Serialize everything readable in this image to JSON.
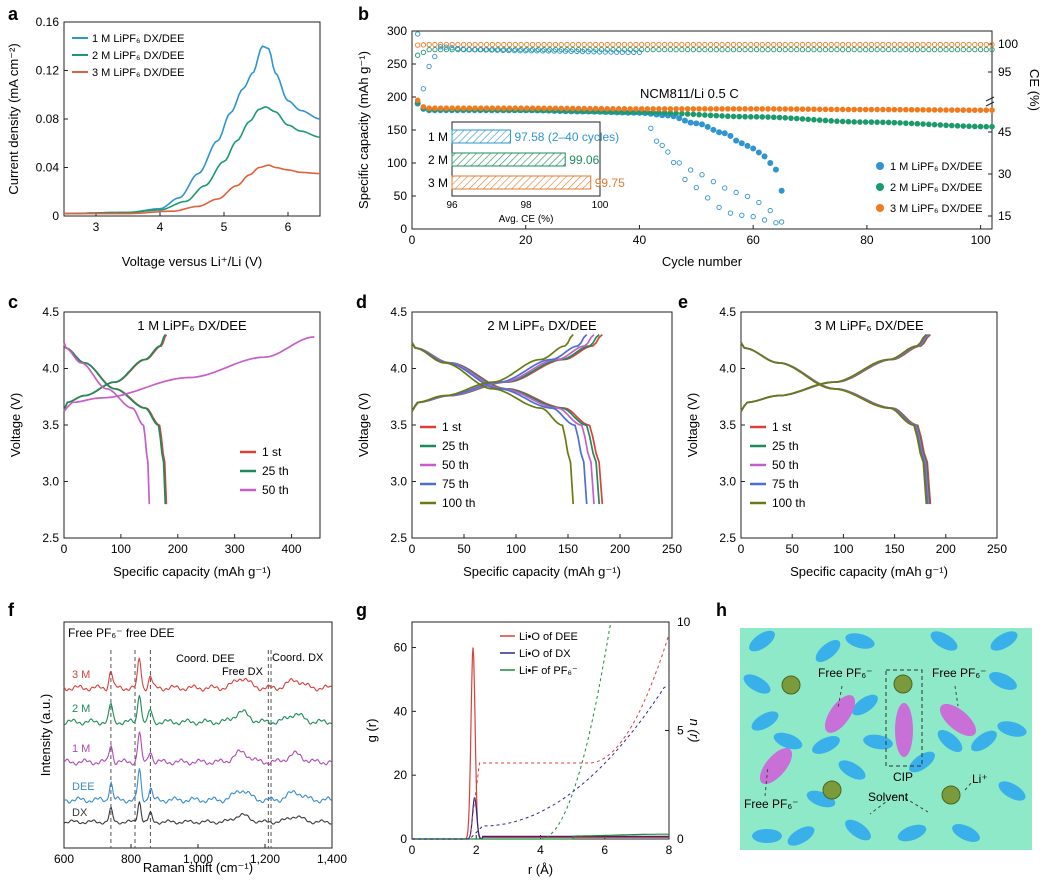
{
  "chart_data": [
    {
      "panel": "a",
      "type": "line",
      "xlabel": "Voltage versus Li⁺/Li (V)",
      "ylabel": "Current density (mA cm⁻²)",
      "xlim": [
        2.5,
        6.5
      ],
      "ylim": [
        0,
        0.16
      ],
      "xticks": [
        "3",
        "4",
        "5",
        "6"
      ],
      "yticks": [
        "0",
        "0.04",
        "0.08",
        "0.12",
        "0.16"
      ],
      "legend": [
        "1 M LiPF₆ DX/DEE",
        "2 M LiPF₆ DX/DEE",
        "3 M LiPF₆ DX/DEE"
      ],
      "series": [
        {
          "name": "1 M LiPF₆ DX/DEE",
          "color": "#2e94d2",
          "x": [
            2.5,
            3.5,
            4.0,
            4.3,
            4.6,
            4.9,
            5.1,
            5.3,
            5.45,
            5.6,
            5.7,
            5.8,
            6.0,
            6.2,
            6.5
          ],
          "y": [
            0.002,
            0.003,
            0.006,
            0.015,
            0.035,
            0.062,
            0.085,
            0.105,
            0.118,
            0.14,
            0.138,
            0.118,
            0.095,
            0.087,
            0.08
          ]
        },
        {
          "name": "2 M LiPF₆ DX/DEE",
          "color": "#1b9a6c",
          "x": [
            2.5,
            3.5,
            4.0,
            4.4,
            4.7,
            5.0,
            5.2,
            5.4,
            5.55,
            5.65,
            5.8,
            6.0,
            6.2,
            6.5
          ],
          "y": [
            0.002,
            0.003,
            0.005,
            0.012,
            0.025,
            0.045,
            0.062,
            0.078,
            0.088,
            0.09,
            0.086,
            0.075,
            0.07,
            0.065
          ]
        },
        {
          "name": "3 M LiPF₆ DX/DEE",
          "color": "#e0613a",
          "x": [
            2.5,
            3.5,
            4.2,
            4.6,
            4.9,
            5.2,
            5.4,
            5.55,
            5.7,
            5.8,
            6.0,
            6.2,
            6.5
          ],
          "y": [
            0.002,
            0.002,
            0.004,
            0.008,
            0.014,
            0.025,
            0.034,
            0.04,
            0.042,
            0.04,
            0.038,
            0.036,
            0.035
          ]
        }
      ]
    },
    {
      "panel": "b",
      "type": "scatter",
      "xlabel": "Cycle number",
      "ylabel": "Specific capacity (mAh g⁻¹)",
      "y2label": "CE (%)",
      "xlim": [
        0,
        102
      ],
      "ylim": [
        0,
        300
      ],
      "xticks": [
        "0",
        "20",
        "40",
        "60",
        "80",
        "100"
      ],
      "yticks": [
        "0",
        "50",
        "100",
        "150",
        "200",
        "250",
        "300"
      ],
      "y2ticks": [
        "15",
        "30",
        "45",
        "95",
        "100"
      ],
      "annotation": "NCM811/Li   0.5 C",
      "legend": [
        "1 M LiPF₆ DX/DEE",
        "2 M LiPF₆ DX/DEE",
        "3 M LiPF₆ DX/DEE"
      ],
      "capacity": {
        "1M": {
          "x": [
            1,
            2,
            3,
            5,
            10,
            20,
            30,
            40,
            45,
            50,
            55,
            58,
            60,
            62,
            63,
            64,
            65
          ],
          "y": [
            190,
            182,
            180,
            180,
            180,
            180,
            178,
            176,
            172,
            160,
            145,
            130,
            122,
            110,
            100,
            90,
            58
          ]
        },
        "2M": {
          "x": [
            1,
            2,
            3,
            5,
            20,
            40,
            60,
            80,
            102
          ],
          "y": [
            192,
            183,
            181,
            181,
            180,
            177,
            170,
            162,
            155
          ]
        },
        "3M": {
          "x": [
            1,
            2,
            3,
            5,
            20,
            40,
            60,
            80,
            102
          ],
          "y": [
            195,
            185,
            183,
            183,
            183,
            182,
            182,
            181,
            180
          ]
        }
      },
      "ce": {
        "1M": {
          "x": [
            1,
            2,
            3,
            5,
            10,
            20,
            40,
            42,
            44,
            46,
            48,
            50,
            52,
            54,
            56,
            58,
            60,
            62,
            64,
            65
          ],
          "y": [
            80,
            92,
            96,
            99.5,
            99,
            98.8,
            98.5,
            45,
            40,
            35,
            30,
            28,
            25,
            22,
            20,
            19,
            18,
            16,
            14,
            12
          ]
        },
        "2M": {
          "x": [
            1,
            3,
            5,
            20,
            40,
            60,
            80,
            102
          ],
          "y": [
            98,
            99,
            99,
            99,
            99,
            99,
            99,
            99
          ]
        },
        "3M": {
          "x": [
            1,
            3,
            5,
            20,
            40,
            60,
            80,
            102
          ],
          "y": [
            99.8,
            99.9,
            99.9,
            99.9,
            99.9,
            99.9,
            99.9,
            99.9
          ]
        }
      },
      "inset": {
        "type": "bar",
        "xlabel": "Avg. CE (%)",
        "xlim": [
          96,
          100
        ],
        "xticks": [
          "96",
          "98",
          "100"
        ],
        "categories": [
          "1 M",
          "2 M",
          "3 M"
        ],
        "values": [
          97.58,
          99.06,
          99.75
        ],
        "labels": [
          "97.58 (2–40 cycles)",
          "99.06",
          "99.75"
        ]
      }
    },
    {
      "panel": "c",
      "type": "line",
      "title": "1 M LiPF₆ DX/DEE",
      "xlabel": "Specific capacity (mAh g⁻¹)",
      "ylabel": "Voltage (V)",
      "xlim": [
        0,
        450
      ],
      "ylim": [
        2.5,
        4.5
      ],
      "xticks": [
        "0",
        "100",
        "200",
        "300",
        "400"
      ],
      "yticks": [
        "2.5",
        "3.0",
        "3.5",
        "4.0",
        "4.5"
      ],
      "legend": [
        "1 st",
        "25 th",
        "50 th"
      ],
      "series": [
        {
          "name": "1 st",
          "color": "#d9403b",
          "capacity": 180
        },
        {
          "name": "25 th",
          "color": "#1e8c5a",
          "capacity": 178
        },
        {
          "name": "50 th",
          "color": "#c75ec8",
          "capacity": 150,
          "overcharge": 440
        }
      ]
    },
    {
      "panel": "d",
      "type": "line",
      "title": "2 M LiPF₆ DX/DEE",
      "xlabel": "Specific capacity (mAh g⁻¹)",
      "ylabel": "Voltage (V)",
      "xlim": [
        0,
        250
      ],
      "ylim": [
        2.5,
        4.5
      ],
      "xticks": [
        "0",
        "50",
        "100",
        "150",
        "200",
        "250"
      ],
      "yticks": [
        "2.5",
        "3.0",
        "3.5",
        "4.0",
        "4.5"
      ],
      "legend": [
        "1 st",
        "25 th",
        "50 th",
        "75 th",
        "100 th"
      ],
      "series": [
        {
          "name": "1 st",
          "color": "#d9403b",
          "capacity": 183
        },
        {
          "name": "25 th",
          "color": "#1e8c5a",
          "capacity": 180
        },
        {
          "name": "50 th",
          "color": "#c75ec8",
          "capacity": 175
        },
        {
          "name": "75 th",
          "color": "#4a6fd8",
          "capacity": 168
        },
        {
          "name": "100 th",
          "color": "#6b7a10",
          "capacity": 155
        }
      ]
    },
    {
      "panel": "e",
      "type": "line",
      "title": "3 M LiPF₆ DX/DEE",
      "xlabel": "Specific capacity (mAh g⁻¹)",
      "ylabel": "Voltage (V)",
      "xlim": [
        0,
        250
      ],
      "ylim": [
        2.5,
        4.5
      ],
      "xticks": [
        "0",
        "50",
        "100",
        "150",
        "200",
        "250"
      ],
      "yticks": [
        "2.5",
        "3.0",
        "3.5",
        "4.0",
        "4.5"
      ],
      "legend": [
        "1 st",
        "25 th",
        "50 th",
        "75 th",
        "100 th"
      ],
      "series": [
        {
          "name": "1 st",
          "color": "#d9403b",
          "capacity": 185
        },
        {
          "name": "25 th",
          "color": "#1e8c5a",
          "capacity": 184
        },
        {
          "name": "50 th",
          "color": "#c75ec8",
          "capacity": 183
        },
        {
          "name": "75 th",
          "color": "#4a6fd8",
          "capacity": 182
        },
        {
          "name": "100 th",
          "color": "#6b7a10",
          "capacity": 181
        }
      ]
    },
    {
      "panel": "f",
      "type": "line",
      "xlabel": "Raman shift (cm⁻¹)",
      "ylabel": "Intensity (a.u.)",
      "xlim": [
        600,
        1400
      ],
      "xticks": [
        "600",
        "800",
        "1,000",
        "1,200",
        "1,400"
      ],
      "header": "Free PF₆⁻ free DEE",
      "annotations": [
        "Coord. DEE",
        "Free DX",
        "Coord. DX"
      ],
      "dashed_positions": [
        740,
        812,
        858,
        1210,
        1218
      ],
      "series": [
        {
          "name": "3 M",
          "color": "#d9403b"
        },
        {
          "name": "2 M",
          "color": "#1e8c5a"
        },
        {
          "name": "1 M",
          "color": "#b04ab5"
        },
        {
          "name": "DEE",
          "color": "#3a8cd0"
        },
        {
          "name": "DX",
          "color": "#3a3a3a"
        }
      ]
    },
    {
      "panel": "g",
      "type": "line",
      "xlabel": "r (Å)",
      "ylabel": "g (r)",
      "y2label": "n (r)",
      "xlim": [
        0,
        8
      ],
      "ylim": [
        0,
        68
      ],
      "y2lim": [
        0,
        10
      ],
      "xticks": [
        "0",
        "2",
        "4",
        "6",
        "8"
      ],
      "yticks": [
        "0",
        "20",
        "40",
        "60"
      ],
      "y2ticks": [
        "0",
        "5",
        "10"
      ],
      "legend": [
        "Li•O of DEE",
        "Li•O of DX",
        "Li•F of PF₆⁻"
      ],
      "series": [
        {
          "name": "Li•O of DEE",
          "color": "#d9403b",
          "g_peak": [
            1.9,
            60
          ],
          "n_plateau": 3.5
        },
        {
          "name": "Li•O of DX",
          "color": "#2a2a8c",
          "g_peak": [
            1.95,
            13
          ],
          "n_end": 7
        },
        {
          "name": "Li•F of PF₆⁻",
          "color": "#1e8c3a",
          "g_peak": [
            6.0,
            1.5
          ],
          "n_end": 10
        }
      ]
    }
  ],
  "panel_h": {
    "background": "#8ee9c9",
    "labels": [
      "Free PF₆⁻",
      "Free PF₆⁻",
      "Free PF₆⁻",
      "CIP",
      "Solvent",
      "Li⁺"
    ]
  },
  "panel_letters": [
    "a",
    "b",
    "c",
    "d",
    "e",
    "f",
    "g",
    "h"
  ]
}
